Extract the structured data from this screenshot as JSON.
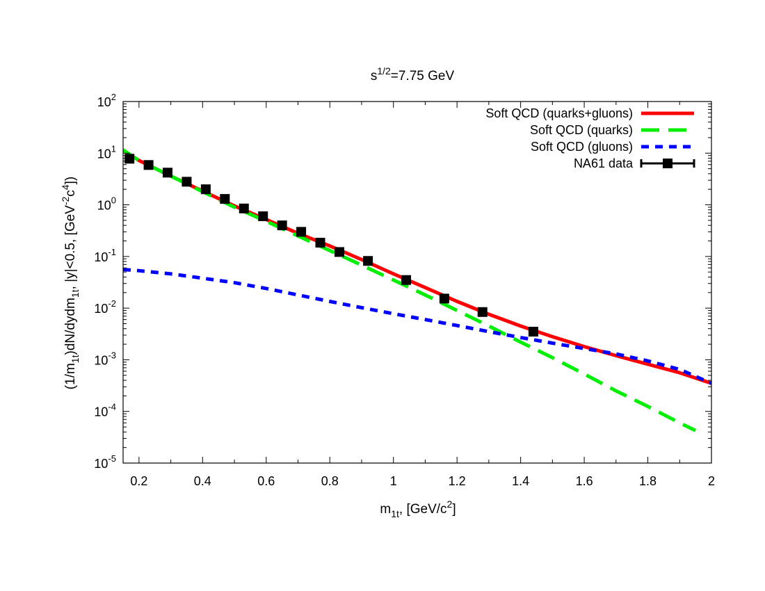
{
  "chart_data": {
    "type": "line",
    "title": {
      "base": "s",
      "sup": "1/2",
      "rest": "=7.75 GeV"
    },
    "xlabel": {
      "a": "m",
      "a_sub": "1t",
      "b": ", [GeV/c",
      "b_sup": "2",
      "c": "]"
    },
    "ylabel": {
      "p1": "(1/m",
      "s1": "1t",
      "p2": ")dN/dydm",
      "s2": "1t",
      "p3": ", |y|<0.5, [GeV",
      "s3": "-2",
      "p4": "c",
      "s4": "4",
      "p5": "])"
    },
    "xlim": [
      0.15,
      2.0
    ],
    "ylim": [
      1e-05,
      100
    ],
    "yscale": "log",
    "x_ticks": [
      0.2,
      0.4,
      0.6,
      0.8,
      1,
      1.2,
      1.4,
      1.6,
      1.8,
      2
    ],
    "x_tick_labels": [
      "0.2",
      "0.4",
      "0.6",
      "0.8",
      "1",
      "1.2",
      "1.4",
      "1.6",
      "1.8",
      "2"
    ],
    "y_ticks": [
      {
        "value": 100,
        "base": "10",
        "exp": "2"
      },
      {
        "value": 10,
        "base": "10",
        "exp": "1"
      },
      {
        "value": 1,
        "base": "10",
        "exp": "0"
      },
      {
        "value": 0.1,
        "base": "10",
        "exp": "-1"
      },
      {
        "value": 0.01,
        "base": "10",
        "exp": "-2"
      },
      {
        "value": 0.001,
        "base": "10",
        "exp": "-3"
      },
      {
        "value": 0.0001,
        "base": "10",
        "exp": "-4"
      },
      {
        "value": 1e-05,
        "base": "10",
        "exp": "-5"
      }
    ],
    "grid": false,
    "legend": {
      "position": "top-right"
    },
    "series": [
      {
        "name": "Soft QCD (quarks+gluons)",
        "kind": "line",
        "style": "solid",
        "color": "#ff0000",
        "x": [
          0.15,
          0.2,
          0.3,
          0.4,
          0.5,
          0.6,
          0.7,
          0.8,
          0.9,
          1.0,
          1.1,
          1.2,
          1.3,
          1.4,
          1.5,
          1.6,
          1.7,
          1.8,
          1.9,
          2.0
        ],
        "y": [
          11.5,
          7.2,
          3.6,
          1.85,
          0.95,
          0.52,
          0.28,
          0.16,
          0.087,
          0.046,
          0.025,
          0.0135,
          0.0076,
          0.0045,
          0.0028,
          0.0018,
          0.0012,
          0.00082,
          0.00056,
          0.00035
        ]
      },
      {
        "name": "Soft QCD (quarks)",
        "kind": "line",
        "style": "long-dash",
        "color": "#00ee00",
        "x": [
          0.15,
          0.2,
          0.3,
          0.4,
          0.5,
          0.6,
          0.7,
          0.8,
          0.9,
          1.0,
          1.1,
          1.2,
          1.3,
          1.4,
          1.5,
          1.6,
          1.7,
          1.8,
          1.9,
          1.95
        ],
        "y": [
          11.5,
          7.2,
          3.6,
          1.8,
          0.9,
          0.48,
          0.25,
          0.13,
          0.068,
          0.035,
          0.018,
          0.009,
          0.0045,
          0.0022,
          0.0011,
          0.00053,
          0.00025,
          0.000125,
          6e-05,
          4.25e-05
        ]
      },
      {
        "name": "Soft QCD (gluons)",
        "kind": "line",
        "style": "short-dash",
        "color": "#0000ff",
        "x": [
          0.15,
          0.2,
          0.3,
          0.4,
          0.5,
          0.6,
          0.7,
          0.8,
          0.9,
          1.0,
          1.1,
          1.2,
          1.3,
          1.4,
          1.5,
          1.6,
          1.7,
          1.8,
          1.9,
          2.0
        ],
        "y": [
          0.056,
          0.053,
          0.046,
          0.038,
          0.031,
          0.024,
          0.018,
          0.0135,
          0.0102,
          0.0078,
          0.006,
          0.0046,
          0.0035,
          0.0027,
          0.0021,
          0.00165,
          0.0013,
          0.00095,
          0.00065,
          0.00035
        ]
      },
      {
        "name": "NA61 data",
        "kind": "points",
        "marker": "square",
        "color": "#000000",
        "x": [
          0.17,
          0.23,
          0.29,
          0.35,
          0.41,
          0.47,
          0.53,
          0.59,
          0.65,
          0.71,
          0.77,
          0.83,
          0.92,
          1.04,
          1.16,
          1.28,
          1.44
        ],
        "y": [
          7.8,
          5.9,
          4.2,
          2.8,
          2.0,
          1.3,
          0.85,
          0.6,
          0.4,
          0.3,
          0.185,
          0.122,
          0.082,
          0.035,
          0.0153,
          0.0084,
          0.0035
        ]
      }
    ]
  }
}
